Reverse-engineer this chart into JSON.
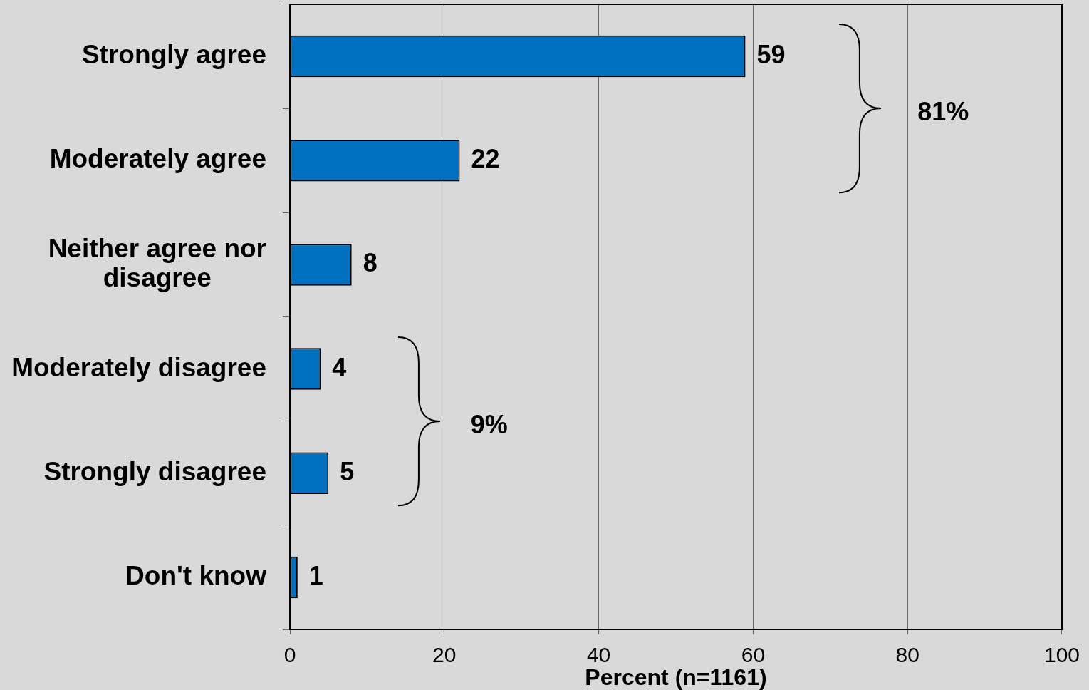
{
  "chart_data": {
    "type": "bar",
    "orientation": "horizontal",
    "categories": [
      "Strongly agree",
      "Moderately agree",
      "Neither agree nor disagree",
      "Moderately disagree",
      "Strongly disagree",
      "Don't know"
    ],
    "values": [
      59,
      22,
      8,
      4,
      5,
      1
    ],
    "color": "#0070c0",
    "xlim": [
      0,
      100
    ],
    "xticks": [
      0,
      20,
      40,
      60,
      80,
      100
    ],
    "xlabel": "Percent (n=1161)",
    "grid": "x",
    "data_labels": true,
    "annotations": [
      "81%",
      "9%"
    ]
  }
}
